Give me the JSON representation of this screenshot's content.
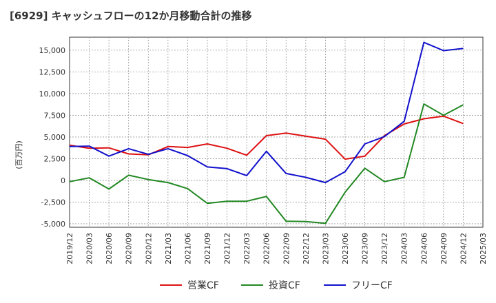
{
  "chart_data": {
    "type": "line",
    "title": "[6929]  キャッシュフローの12か月移動合計の推移",
    "ylabel": "(百万円)",
    "xlabel": "",
    "ylim": [
      -5400,
      16500
    ],
    "yticks": [
      -5000,
      -2500,
      0,
      2500,
      5000,
      7500,
      10000,
      12500,
      15000
    ],
    "ytick_labels": [
      "-5,000",
      "-2,500",
      "0",
      "2,500",
      "5,000",
      "7,500",
      "10,000",
      "12,500",
      "15,000"
    ],
    "x_ticks": [
      "2019/12",
      "2020/03",
      "2020/06",
      "2020/09",
      "2020/12",
      "2021/03",
      "2021/06",
      "2021/09",
      "2021/12",
      "2022/03",
      "2022/06",
      "2022/09",
      "2022/12",
      "2023/03",
      "2023/06",
      "2023/09",
      "2023/12",
      "2024/03",
      "2024/06",
      "2024/09",
      "2024/12",
      "2025/03"
    ],
    "grid": true,
    "legend_position": "bottom",
    "series": [
      {
        "name": "営業CF",
        "color": "#dd1111",
        "values": [
          4050,
          3700,
          3750,
          3050,
          2950,
          3900,
          3800,
          4200,
          3700,
          2900,
          5150,
          5450,
          5100,
          4750,
          2450,
          2800,
          5150,
          6500,
          7100,
          7400,
          6550
        ]
      },
      {
        "name": "投資CF",
        "color": "#228822",
        "values": [
          -150,
          300,
          -1000,
          600,
          100,
          -250,
          -950,
          -2650,
          -2400,
          -2400,
          -1850,
          -4700,
          -4750,
          -4950,
          -1350,
          1400,
          -150,
          350,
          8800,
          7500,
          8700
        ]
      },
      {
        "name": "フリーCF",
        "color": "#1111cc",
        "values": [
          3900,
          3950,
          2800,
          3650,
          3000,
          3650,
          2850,
          1550,
          1350,
          550,
          3350,
          800,
          350,
          -250,
          1000,
          4200,
          5050,
          6800,
          15900,
          14950,
          15200
        ]
      }
    ]
  }
}
